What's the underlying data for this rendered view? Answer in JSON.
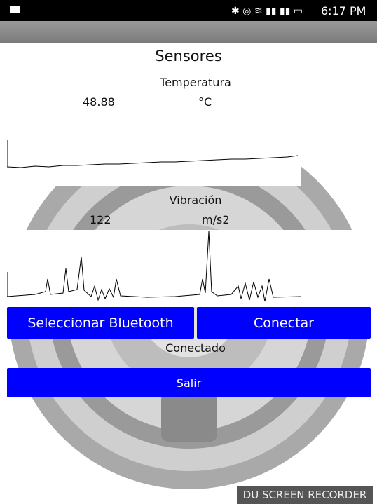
{
  "status_bar": {
    "time": "6:17 PM"
  },
  "screen": {
    "title": "Sensores",
    "temperature": {
      "label": "Temperatura",
      "value": "48.88",
      "unit": "°C"
    },
    "vibration": {
      "label": "Vibración",
      "value": "122",
      "unit": "m/s2"
    },
    "buttons": {
      "select_bluetooth": "Seleccionar Bluetooth",
      "connect": "Conectar",
      "exit": "Salir"
    },
    "connection_status": "Conectado"
  },
  "watermark": "DU SCREEN RECORDER"
}
